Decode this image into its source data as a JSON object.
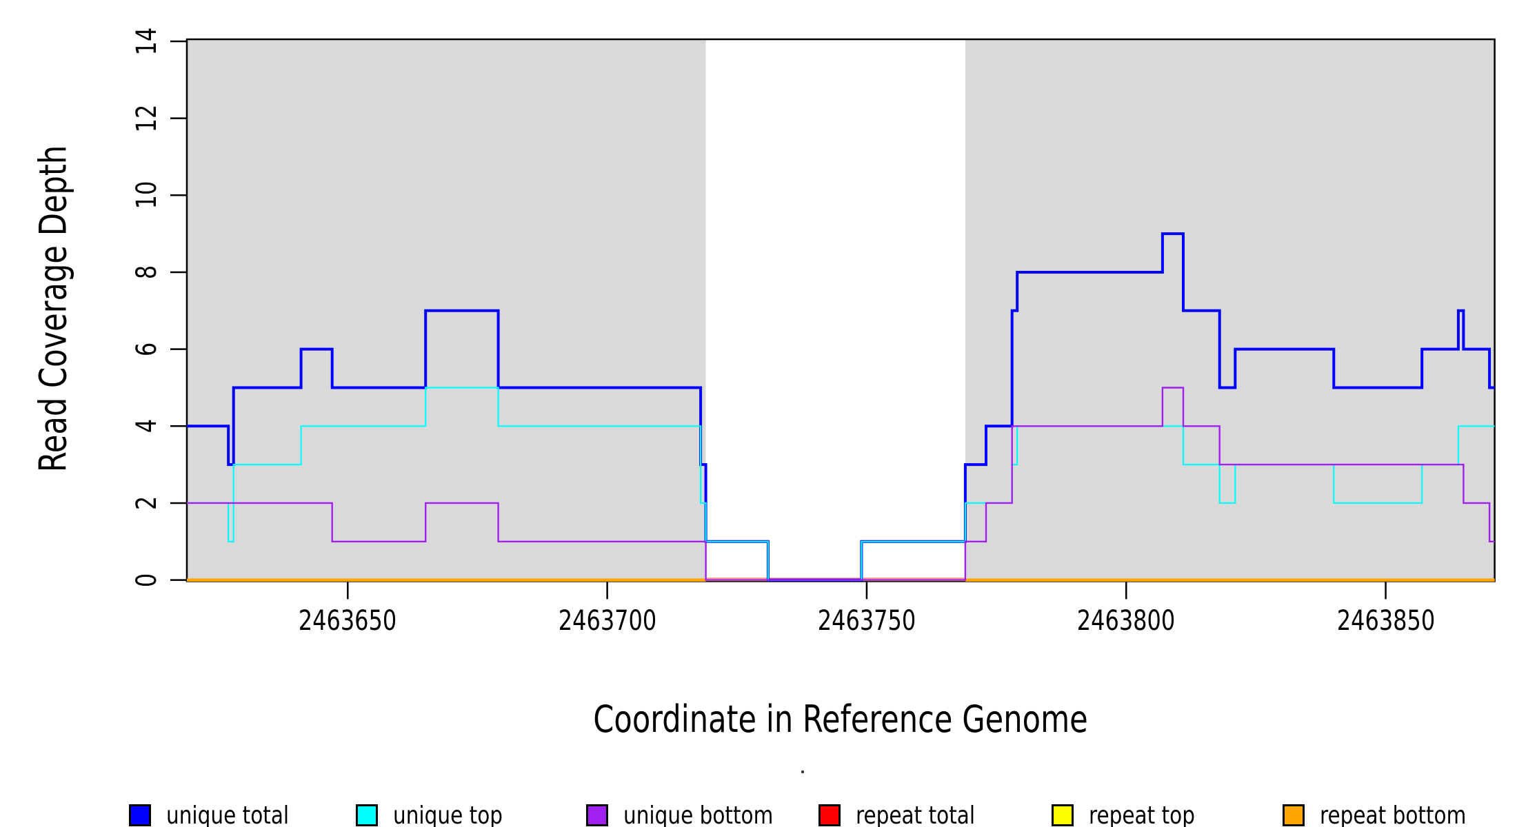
{
  "figure": {
    "background": "#ffffff",
    "frame_color": "#000000",
    "shaded_band_color": "#d9d9d9"
  },
  "axes": {
    "x": {
      "label": "Coordinate in Reference Genome",
      "tick_labels": [
        "2463650",
        "2463700",
        "2463750",
        "2463800",
        "2463850"
      ]
    },
    "y": {
      "label": "Read Coverage Depth",
      "tick_labels": [
        "0",
        "2",
        "4",
        "6",
        "8",
        "10",
        "12",
        "14"
      ]
    }
  },
  "legend": {
    "items": [
      {
        "label": "unique total",
        "color": "#0000ff"
      },
      {
        "label": "unique top",
        "color": "#00ffff"
      },
      {
        "label": "unique bottom",
        "color": "#a020f0"
      },
      {
        "label": "repeat total",
        "color": "#ff0000"
      },
      {
        "label": "repeat top",
        "color": "#ffff00"
      },
      {
        "label": "repeat bottom",
        "color": "#ffa500"
      }
    ]
  },
  "chart_data": {
    "type": "line",
    "subtype": "step",
    "title": "",
    "xlabel": "Coordinate in Reference Genome",
    "ylabel": "Read Coverage Depth",
    "xlim": [
      2463619,
      2463871
    ],
    "ylim": [
      0,
      14
    ],
    "x_ticks": [
      2463650,
      2463700,
      2463750,
      2463800,
      2463850
    ],
    "y_ticks": [
      0,
      2,
      4,
      6,
      8,
      10,
      12,
      14
    ],
    "grid": false,
    "legend_position": "bottom",
    "shaded_regions": [
      {
        "x0": 2463619,
        "x1": 2463719,
        "color": "#d9d9d9"
      },
      {
        "x0": 2463769,
        "x1": 2463871,
        "color": "#d9d9d9"
      }
    ],
    "series": [
      {
        "name": "unique total",
        "color": "#0000ff",
        "linewidth": 4,
        "steps": [
          [
            2463619,
            4
          ],
          [
            2463627,
            3
          ],
          [
            2463628,
            5
          ],
          [
            2463641,
            6
          ],
          [
            2463647,
            5
          ],
          [
            2463665,
            7
          ],
          [
            2463679,
            5
          ],
          [
            2463718,
            3
          ],
          [
            2463719,
            1
          ],
          [
            2463731,
            0
          ],
          [
            2463749,
            1
          ],
          [
            2463769,
            3
          ],
          [
            2463773,
            4
          ],
          [
            2463778,
            7
          ],
          [
            2463779,
            8
          ],
          [
            2463807,
            9
          ],
          [
            2463811,
            7
          ],
          [
            2463818,
            5
          ],
          [
            2463821,
            6
          ],
          [
            2463840,
            5
          ],
          [
            2463857,
            6
          ],
          [
            2463864,
            7
          ],
          [
            2463865,
            6
          ],
          [
            2463870,
            5
          ]
        ],
        "end": 2463871
      },
      {
        "name": "unique top",
        "color": "#00ffff",
        "linewidth": 2.2,
        "steps": [
          [
            2463619,
            2
          ],
          [
            2463627,
            1
          ],
          [
            2463628,
            3
          ],
          [
            2463641,
            4
          ],
          [
            2463665,
            5
          ],
          [
            2463679,
            4
          ],
          [
            2463718,
            2
          ],
          [
            2463719,
            1
          ],
          [
            2463731,
            0
          ],
          [
            2463749,
            1
          ],
          [
            2463769,
            2
          ],
          [
            2463778,
            3
          ],
          [
            2463779,
            4
          ],
          [
            2463811,
            3
          ],
          [
            2463818,
            2
          ],
          [
            2463821,
            3
          ],
          [
            2463840,
            2
          ],
          [
            2463857,
            3
          ],
          [
            2463864,
            4
          ]
        ],
        "end": 2463871
      },
      {
        "name": "unique bottom",
        "color": "#a020f0",
        "linewidth": 2.4,
        "steps": [
          [
            2463619,
            2
          ],
          [
            2463647,
            1
          ],
          [
            2463665,
            2
          ],
          [
            2463679,
            1
          ],
          [
            2463719,
            0
          ],
          [
            2463769,
            1
          ],
          [
            2463773,
            2
          ],
          [
            2463778,
            4
          ],
          [
            2463807,
            5
          ],
          [
            2463811,
            4
          ],
          [
            2463818,
            3
          ],
          [
            2463865,
            2
          ],
          [
            2463870,
            1
          ]
        ],
        "end": 2463871
      },
      {
        "name": "repeat total",
        "color": "#ff0000",
        "linewidth": 2,
        "steps": [
          [
            2463619,
            0
          ]
        ],
        "end": 2463871
      },
      {
        "name": "repeat top",
        "color": "#ffff00",
        "linewidth": 3,
        "steps": [
          [
            2463619,
            0
          ]
        ],
        "end": 2463871
      },
      {
        "name": "repeat bottom",
        "color": "#ffa500",
        "linewidth": 4.5,
        "steps": [
          [
            2463619,
            0
          ]
        ],
        "end": 2463871
      }
    ]
  }
}
